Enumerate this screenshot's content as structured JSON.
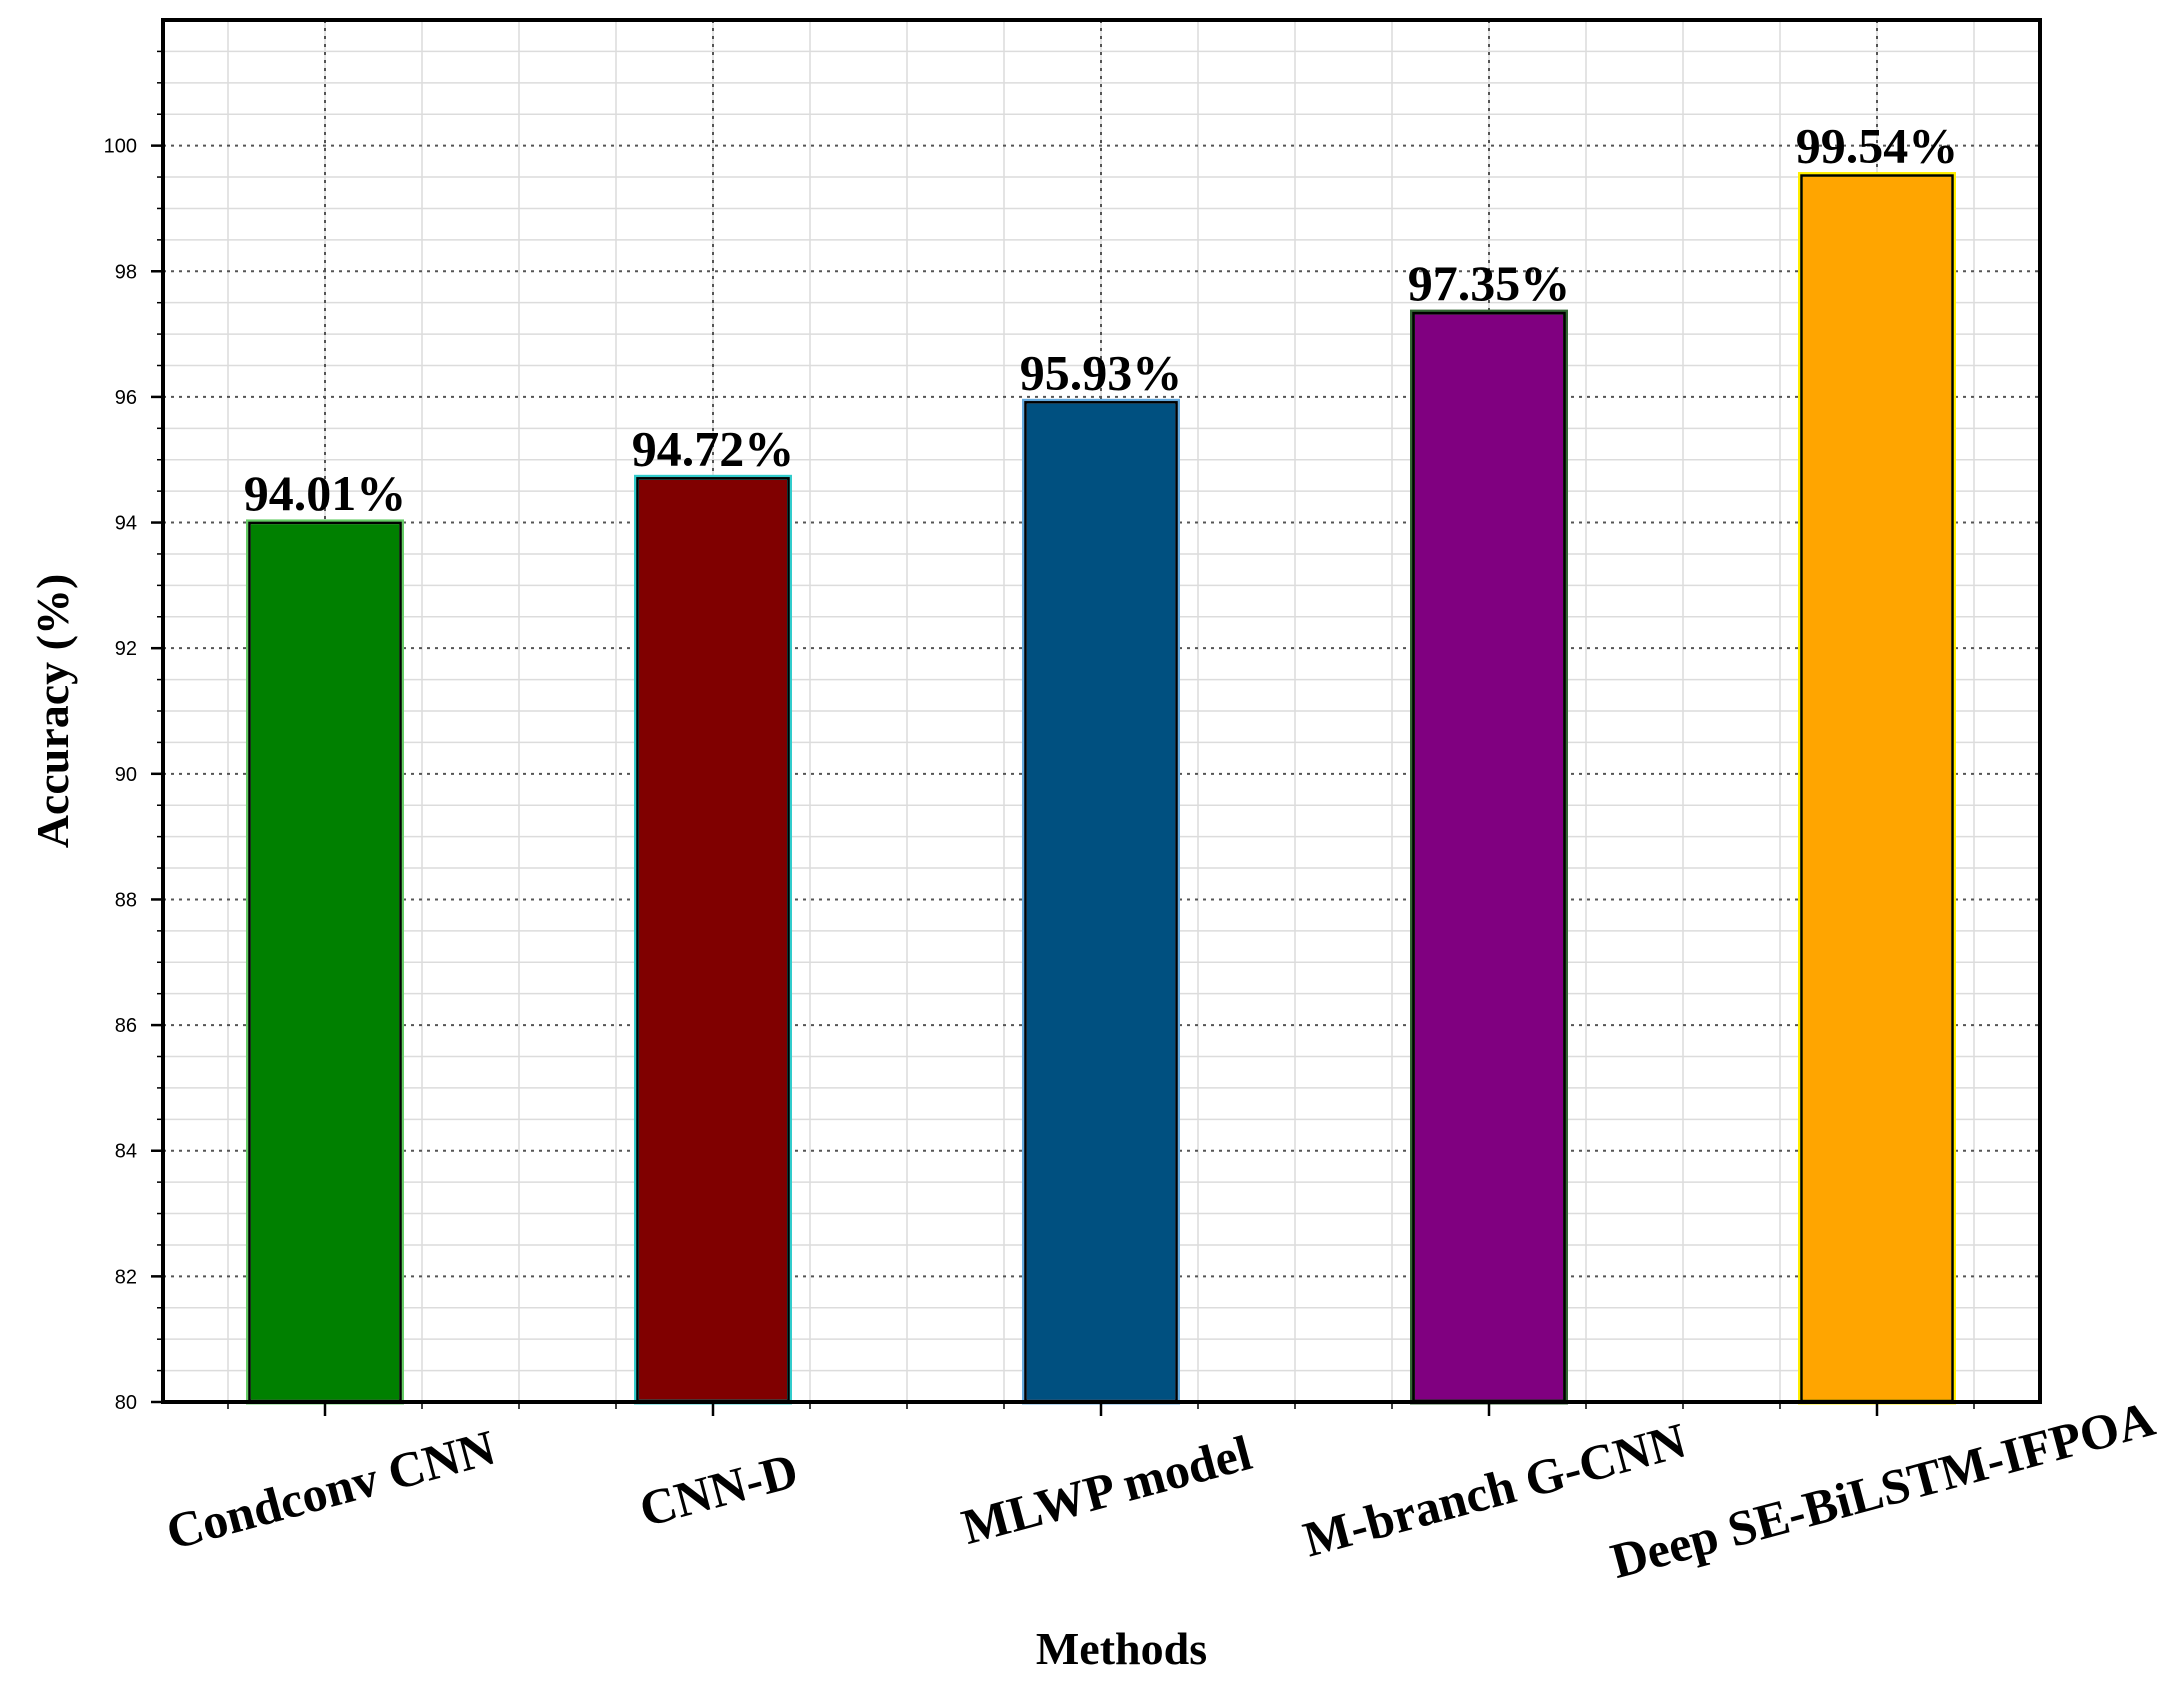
{
  "chart_data": {
    "type": "bar",
    "title": "",
    "xlabel": "Methods",
    "ylabel": "Accuracy (%)",
    "ylim": [
      80,
      102
    ],
    "yticks": [
      80,
      82,
      84,
      86,
      88,
      90,
      92,
      94,
      96,
      98,
      100
    ],
    "grid": true,
    "legend": "none",
    "categories": [
      "Condconv CNN",
      "CNN-D",
      "MLWP model",
      "M-branch G-CNN",
      "Deep SE-BiLSTM-IFPOA"
    ],
    "values": [
      94.01,
      94.72,
      95.93,
      97.35,
      99.54
    ],
    "value_labels": [
      "94.01%",
      "94.72%",
      "95.93%",
      "97.35%",
      "99.54%"
    ],
    "colors": [
      "#008000",
      "#800000",
      "#005080",
      "#800080",
      "#ffa500"
    ],
    "edge_colors": [
      "#66cc66",
      "#33cccc",
      "#66aadd",
      "#336633",
      "#ffee00"
    ]
  }
}
